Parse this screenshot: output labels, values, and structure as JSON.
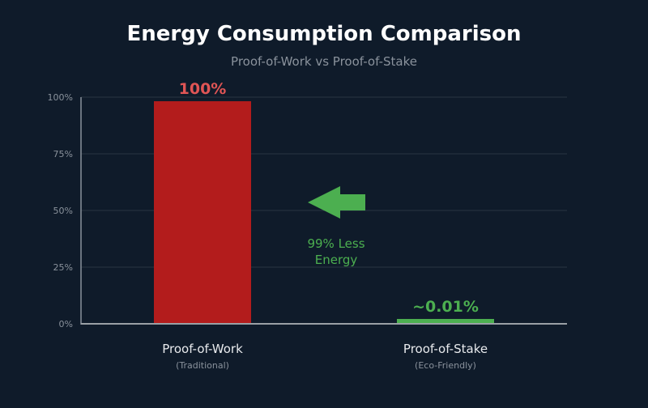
{
  "chart_data": {
    "type": "bar",
    "title": "Energy Consumption Comparison",
    "subtitle": "Proof-of-Work vs Proof-of-Stake",
    "categories": [
      "Proof-of-Work",
      "Proof-of-Stake"
    ],
    "sublabels": [
      "(Traditional)",
      "(Eco-Friendly)"
    ],
    "values": [
      100,
      0.01
    ],
    "value_labels": [
      "100%",
      "~0.01%"
    ],
    "colors": [
      "#b31c1c",
      "#4caf50"
    ],
    "label_colors": [
      "#e05555",
      "#4caf50"
    ],
    "ylim": [
      0,
      100
    ],
    "yticks": [
      "0%",
      "25%",
      "50%",
      "75%",
      "100%"
    ],
    "grid": true,
    "annotation": {
      "line1": "99% Less",
      "line2": "Energy",
      "icon": "arrow-left-icon",
      "color": "#4caf50"
    }
  }
}
